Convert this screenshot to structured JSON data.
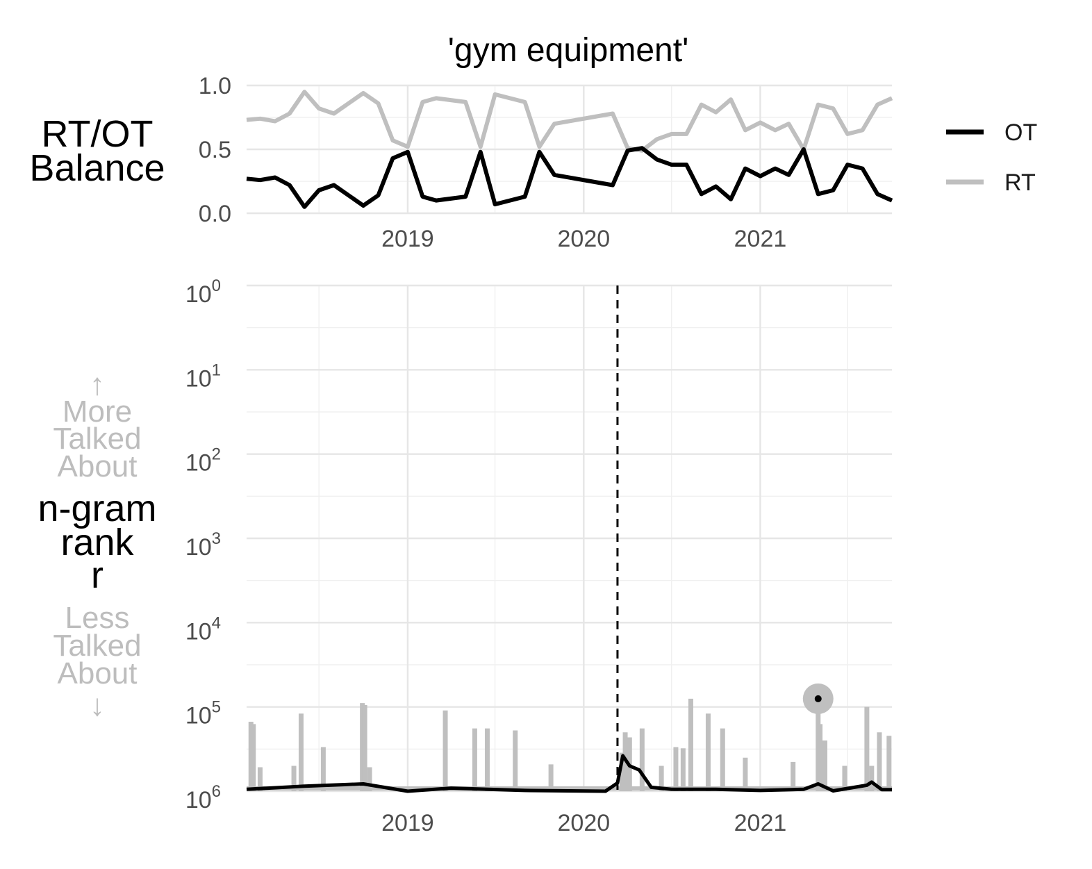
{
  "title": "'gym equipment'",
  "colors": {
    "OT": "#000000",
    "RT": "#bfbfbf"
  },
  "legend": [
    {
      "key": "OT",
      "label": "OT"
    },
    {
      "key": "RT",
      "label": "RT"
    }
  ],
  "labels": {
    "top_line1": "RT/OT",
    "top_line2": "Balance",
    "rank_line1": "n-gram",
    "rank_line2": "rank",
    "rank_line3": "r",
    "up_arrow": "↑",
    "more1": "More",
    "more2": "Talked",
    "more3": "About",
    "less1": "Less",
    "less2": "Talked",
    "less3": "About",
    "down_arrow": "↓"
  },
  "chart_data": [
    {
      "type": "line",
      "panel": "balance",
      "xlim": [
        "2018-02-01",
        "2021-10-01"
      ],
      "ylim": [
        0,
        1
      ],
      "yticks": [
        "0.0",
        "0.5",
        "1.0"
      ],
      "xticks": [
        "2019",
        "2020",
        "2021"
      ],
      "series": [
        {
          "name": "OT",
          "x": [
            "2018-02-01",
            "2018-03-01",
            "2018-04-01",
            "2018-05-01",
            "2018-06-01",
            "2018-07-01",
            "2018-08-01",
            "2018-10-01",
            "2018-11-01",
            "2018-12-01",
            "2019-01-01",
            "2019-02-01",
            "2019-03-01",
            "2019-05-01",
            "2019-06-01",
            "2019-07-01",
            "2019-09-01",
            "2019-10-01",
            "2019-11-01",
            "2020-03-01",
            "2020-04-01",
            "2020-05-01",
            "2020-06-01",
            "2020-07-01",
            "2020-08-01",
            "2020-09-01",
            "2020-10-01",
            "2020-11-01",
            "2020-12-01",
            "2021-01-01",
            "2021-02-01",
            "2021-03-01",
            "2021-04-01",
            "2021-05-01",
            "2021-06-01",
            "2021-07-01",
            "2021-08-01",
            "2021-09-01",
            "2021-10-01"
          ],
          "y": [
            0.27,
            0.26,
            0.28,
            0.22,
            0.05,
            0.18,
            0.22,
            0.06,
            0.14,
            0.43,
            0.48,
            0.13,
            0.1,
            0.13,
            0.48,
            0.07,
            0.13,
            0.48,
            0.3,
            0.22,
            0.49,
            0.51,
            0.42,
            0.38,
            0.38,
            0.15,
            0.21,
            0.11,
            0.35,
            0.29,
            0.35,
            0.3,
            0.5,
            0.15,
            0.18,
            0.38,
            0.35,
            0.15,
            0.1
          ]
        },
        {
          "name": "RT",
          "x": [
            "2018-02-01",
            "2018-03-01",
            "2018-04-01",
            "2018-05-01",
            "2018-06-01",
            "2018-07-01",
            "2018-08-01",
            "2018-10-01",
            "2018-11-01",
            "2018-12-01",
            "2019-01-01",
            "2019-02-01",
            "2019-03-01",
            "2019-05-01",
            "2019-06-01",
            "2019-07-01",
            "2019-09-01",
            "2019-10-01",
            "2019-11-01",
            "2020-03-01",
            "2020-04-01",
            "2020-05-01",
            "2020-06-01",
            "2020-07-01",
            "2020-08-01",
            "2020-09-01",
            "2020-10-01",
            "2020-11-01",
            "2020-12-01",
            "2021-01-01",
            "2021-02-01",
            "2021-03-01",
            "2021-04-01",
            "2021-05-01",
            "2021-06-01",
            "2021-07-01",
            "2021-08-01",
            "2021-09-01",
            "2021-10-01"
          ],
          "y": [
            0.73,
            0.74,
            0.72,
            0.78,
            0.95,
            0.82,
            0.78,
            0.94,
            0.86,
            0.57,
            0.52,
            0.87,
            0.9,
            0.87,
            0.52,
            0.93,
            0.87,
            0.52,
            0.7,
            0.78,
            0.51,
            0.49,
            0.58,
            0.62,
            0.62,
            0.85,
            0.79,
            0.89,
            0.65,
            0.71,
            0.65,
            0.7,
            0.5,
            0.85,
            0.82,
            0.62,
            0.65,
            0.85,
            0.9
          ]
        }
      ]
    },
    {
      "type": "line",
      "panel": "rank",
      "y_scale": "log10, reversed",
      "ylim": [
        1,
        1000000
      ],
      "yticks": [
        "10^0",
        "10^1",
        "10^2",
        "10^3",
        "10^4",
        "10^5",
        "10^6"
      ],
      "xlim": [
        "2018-02-01",
        "2021-10-01"
      ],
      "xticks": [
        "2019",
        "2020",
        "2021"
      ],
      "event_date": "2020-03-11",
      "highlight": {
        "date": "2021-05-01",
        "rank": 80000
      },
      "series": [
        {
          "name": "RT",
          "x": [
            "2018-02-10",
            "2018-02-15",
            "2018-03-01",
            "2018-05-10",
            "2018-05-25",
            "2018-07-10",
            "2018-09-29",
            "2018-10-04",
            "2018-10-14",
            "2019-03-20",
            "2019-05-20",
            "2019-06-15",
            "2019-08-12",
            "2019-10-25",
            "2020-03-20",
            "2020-03-27",
            "2020-04-05",
            "2020-05-01",
            "2020-06-10",
            "2020-07-10",
            "2020-07-25",
            "2020-08-10",
            "2020-09-15",
            "2020-10-15",
            "2020-12-01",
            "2021-03-10",
            "2021-05-01",
            "2021-05-05",
            "2021-05-15",
            "2021-06-25",
            "2021-08-10",
            "2021-08-20",
            "2021-09-05",
            "2021-09-25"
          ],
          "y": [
            150000,
            160000,
            520000,
            500000,
            120000,
            300000,
            90000,
            95000,
            520000,
            110000,
            180000,
            180000,
            190000,
            480000,
            350000,
            200000,
            230000,
            180000,
            500000,
            300000,
            310000,
            80000,
            120000,
            180000,
            400000,
            450000,
            80000,
            160000,
            250000,
            500000,
            100000,
            500000,
            200000,
            220000
          ]
        },
        {
          "name": "OT",
          "x": [
            "2018-02-01",
            "2018-06-01",
            "2018-10-01",
            "2019-01-01",
            "2019-04-01",
            "2019-09-01",
            "2020-02-15",
            "2020-03-11",
            "2020-03-22",
            "2020-04-05",
            "2020-04-25",
            "2020-05-20",
            "2020-07-01",
            "2020-10-01",
            "2021-01-01",
            "2021-04-01",
            "2021-05-01",
            "2021-06-01",
            "2021-08-10",
            "2021-08-20",
            "2021-09-10",
            "2021-10-01"
          ],
          "y": [
            950000,
            870000,
            820000,
            1000000,
            920000,
            980000,
            1000000,
            800000,
            380000,
            500000,
            560000,
            900000,
            950000,
            950000,
            980000,
            950000,
            820000,
            990000,
            850000,
            780000,
            960000,
            960000
          ]
        }
      ]
    }
  ]
}
